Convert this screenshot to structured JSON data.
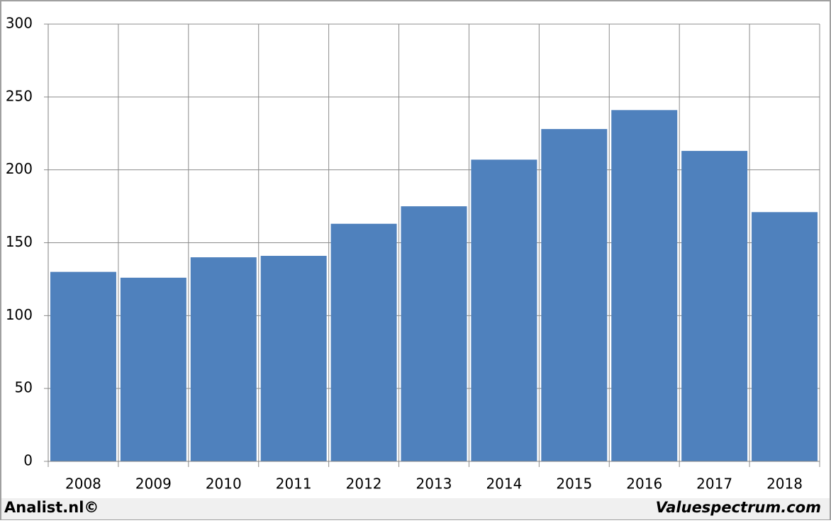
{
  "chart_data": {
    "type": "bar",
    "categories": [
      "2008",
      "2009",
      "2010",
      "2011",
      "2012",
      "2013",
      "2014",
      "2015",
      "2016",
      "2017",
      "2018"
    ],
    "values": [
      130,
      126,
      140,
      141,
      163,
      175,
      207,
      228,
      241,
      213,
      171
    ],
    "color": "#4f81bd",
    "ylim": [
      0,
      300
    ],
    "yticks": [
      0,
      50,
      100,
      150,
      200,
      250,
      300
    ],
    "grid": true
  },
  "footer": {
    "left": "Analist.nl©",
    "right": "Valuespectrum.com"
  }
}
